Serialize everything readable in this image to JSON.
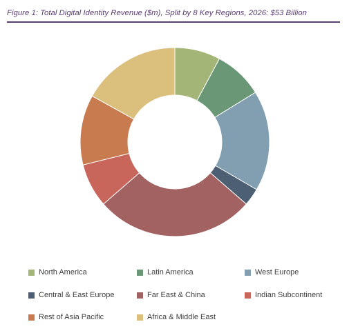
{
  "figure": {
    "title": "Figure 1: Total Digital Identity Revenue ($m), Split by 8 Key Regions, 2026: $53 Billion",
    "title_color": "#5b3f73",
    "rule_color": "#5b3f73"
  },
  "chart_data": {
    "type": "pie",
    "donut": true,
    "title": "Figure 1: Total Digital Identity Revenue ($m), Split by 8 Key Regions, 2026: $53 Billion",
    "legend_position": "bottom",
    "unit": "%",
    "categories": [
      "North America",
      "Latin America",
      "West Europe",
      "Central & East Europe",
      "Far East & China",
      "Indian Subcontinent",
      "Rest of Asia Pacific",
      "Africa & Middle East"
    ],
    "values": [
      7.8,
      8.4,
      17.2,
      3.0,
      27.2,
      7.5,
      12.0,
      16.9
    ],
    "colors": [
      "#a4b677",
      "#6a9877",
      "#819fb0",
      "#4d5f73",
      "#a36262",
      "#c9665c",
      "#c87b4f",
      "#dbbf7d"
    ]
  }
}
